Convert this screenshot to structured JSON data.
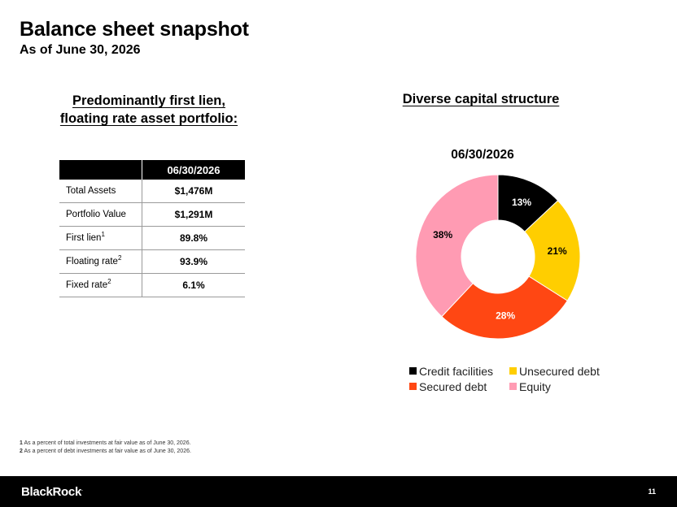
{
  "header": {
    "title": "Balance sheet snapshot",
    "subtitle": "As of June 30, 2026"
  },
  "left_panel": {
    "heading_line1": "Predominantly first lien,",
    "heading_line2": "floating rate asset portfolio:",
    "table": {
      "column_header": "06/30/2026",
      "rows": [
        {
          "label": "Total Assets",
          "sup": "",
          "value": "$1,476M"
        },
        {
          "label": "Portfolio Value",
          "sup": "",
          "value": "$1,291M"
        },
        {
          "label": "First lien",
          "sup": "1",
          "value": "89.8%"
        },
        {
          "label": "Floating rate",
          "sup": "2",
          "value": "93.9%"
        },
        {
          "label": "Fixed rate",
          "sup": "2",
          "value": "6.1%"
        }
      ]
    }
  },
  "right_panel": {
    "heading": "Diverse capital structure"
  },
  "chart_data": {
    "type": "pie",
    "donut": true,
    "title": "06/30/2026",
    "categories": [
      "Credit facilities",
      "Unsecured debt",
      "Secured debt",
      "Equity"
    ],
    "values": [
      13,
      21,
      28,
      38
    ],
    "labels": [
      "13%",
      "21%",
      "28%",
      "38%"
    ],
    "colors": [
      "#000000",
      "#FFCE00",
      "#FF4713",
      "#FF9BB3"
    ],
    "label_colors": [
      "#ffffff",
      "#000000",
      "#ffffff",
      "#000000"
    ],
    "legend_position": "bottom"
  },
  "footnotes": [
    {
      "num": "1",
      "text": "As a percent of total investments at fair value as of June 30, 2026."
    },
    {
      "num": "2",
      "text": "As a percent of debt investments at fair value as of June 30, 2026."
    }
  ],
  "footer": {
    "logo": "BlackRock",
    "logo_mark": ".",
    "page_number": "11"
  }
}
